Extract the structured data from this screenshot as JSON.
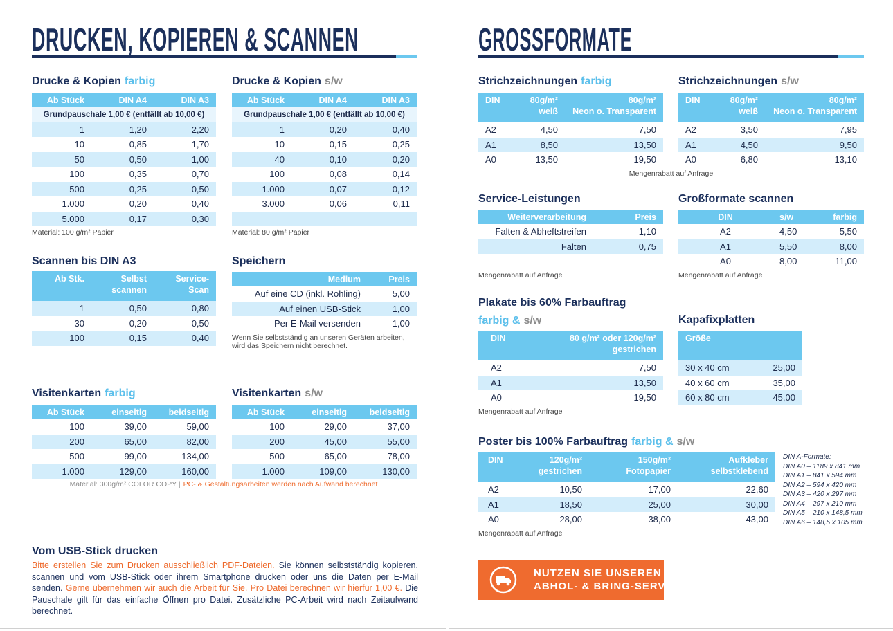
{
  "left_heading": "DRUCKEN, KOPIEREN & SCANNEN",
  "right_heading": "GROSSFORMATE",
  "tables": [
    {
      "title": [
        {
          "text": "Drucke & Kopien",
          "tone": "dark"
        },
        {
          "text": "farbig",
          "tone": "blue"
        }
      ],
      "columns": [
        "Ab Stück",
        "DIN A4",
        "DIN A3"
      ],
      "subheader": "Grundpauschale 1,00 € (entfällt ab 10,00 €)",
      "rows": [
        [
          "1",
          "1,20",
          "2,20"
        ],
        [
          "10",
          "0,85",
          "1,70"
        ],
        [
          "50",
          "0,50",
          "1,00"
        ],
        [
          "100",
          "0,35",
          "0,70"
        ],
        [
          "500",
          "0,25",
          "0,50"
        ],
        [
          "1.000",
          "0,20",
          "0,40"
        ],
        [
          "5.000",
          "0,17",
          "0,30"
        ]
      ],
      "note": "Material: 100 g/m² Papier"
    },
    {
      "title": [
        {
          "text": "Drucke & Kopien",
          "tone": "dark"
        },
        {
          "text": "s/w",
          "tone": "gray"
        }
      ],
      "columns": [
        "Ab Stück",
        "DIN A4",
        "DIN A3"
      ],
      "subheader": "Grundpauschale 1,00 € (entfällt ab 10,00 €)",
      "rows": [
        [
          "1",
          "0,20",
          "0,40"
        ],
        [
          "10",
          "0,15",
          "0,25"
        ],
        [
          "40",
          "0,10",
          "0,20"
        ],
        [
          "100",
          "0,08",
          "0,14"
        ],
        [
          "1.000",
          "0,07",
          "0,12"
        ],
        [
          "3.000",
          "0,06",
          "0,11"
        ]
      ],
      "note": "Material: 80 g/m² Papier"
    },
    {
      "title": [
        {
          "text": "Scannen bis DIN A3",
          "tone": "dark"
        }
      ],
      "columns": [
        "Ab Stk.",
        "Selbst\nscannen",
        "Service-\nScan"
      ],
      "rows": [
        [
          "1",
          "0,50",
          "0,80"
        ],
        [
          "30",
          "0,20",
          "0,50"
        ],
        [
          "100",
          "0,15",
          "0,40"
        ]
      ]
    },
    {
      "title": [
        {
          "text": "Speichern",
          "tone": "dark"
        }
      ],
      "columns": [
        "Medium",
        "Preis"
      ],
      "rows": [
        [
          "Auf eine CD (inkl. Rohling)",
          "5,00"
        ],
        [
          "Auf einen USB-Stick",
          "1,00"
        ],
        [
          "Per E-Mail versenden",
          "1,00"
        ]
      ],
      "note": "Wenn Sie selbstständig an unseren Geräten arbeiten,\nwird das Speichern nicht berechnet."
    },
    {
      "title": [
        {
          "text": "Visitenkarten",
          "tone": "dark"
        },
        {
          "text": "farbig",
          "tone": "blue"
        }
      ],
      "columns": [
        "Ab Stück",
        "einseitig",
        "beidseitig"
      ],
      "rows": [
        [
          "100",
          "39,00",
          "59,00"
        ],
        [
          "200",
          "65,00",
          "82,00"
        ],
        [
          "500",
          "99,00",
          "134,00"
        ],
        [
          "1.000",
          "129,00",
          "160,00"
        ]
      ]
    },
    {
      "title": [
        {
          "text": "Visitenkarten",
          "tone": "dark"
        },
        {
          "text": "s/w",
          "tone": "gray"
        }
      ],
      "columns": [
        "Ab Stück",
        "einseitig",
        "beidseitig"
      ],
      "rows": [
        [
          "100",
          "29,00",
          "37,00"
        ],
        [
          "200",
          "45,00",
          "55,00"
        ],
        [
          "500",
          "65,00",
          "78,00"
        ],
        [
          "1.000",
          "109,00",
          "130,00"
        ]
      ]
    },
    {
      "title": [
        {
          "text": "Strichzeichnungen",
          "tone": "dark"
        },
        {
          "text": "farbig",
          "tone": "blue"
        }
      ],
      "columns": [
        "DIN",
        "80g/m²\nweiß",
        "80g/m²\nNeon o. Transparent"
      ],
      "rows": [
        [
          "A2",
          "4,50",
          "7,50"
        ],
        [
          "A1",
          "8,50",
          "13,50"
        ],
        [
          "A0",
          "13,50",
          "19,50"
        ]
      ],
      "note": "Mengenrabatt auf Anfrage"
    },
    {
      "title": [
        {
          "text": "Strichzeichnungen",
          "tone": "dark"
        },
        {
          "text": "s/w",
          "tone": "gray"
        }
      ],
      "columns": [
        "DIN",
        "80g/m²\nweiß",
        "80g/m²\nNeon o. Transparent"
      ],
      "rows": [
        [
          "A2",
          "3,50",
          "7,95"
        ],
        [
          "A1",
          "4,50",
          "9,50"
        ],
        [
          "A0",
          "6,80",
          "13,10"
        ]
      ]
    },
    {
      "title": [
        {
          "text": "Service-Leistungen",
          "tone": "dark"
        }
      ],
      "columns": [
        "Weiterverarbeitung",
        "Preis"
      ],
      "rows": [
        [
          "Falten & Abheftstreifen",
          "1,10"
        ],
        [
          "Falten",
          "0,75"
        ]
      ],
      "note": "Mengenrabatt auf Anfrage"
    },
    {
      "title": [
        {
          "text": "Großformate scannen",
          "tone": "dark"
        }
      ],
      "columns": [
        "DIN",
        "s/w",
        "farbig"
      ],
      "rows": [
        [
          "A2",
          "4,50",
          "5,50"
        ],
        [
          "A1",
          "5,50",
          "8,00"
        ],
        [
          "A0",
          "8,00",
          "11,00"
        ]
      ],
      "note": "Mengenrabatt auf Anfrage"
    },
    {
      "title": [
        {
          "text": "Plakate bis 60% Farbauftrag",
          "tone": "dark"
        },
        {
          "text": "farbig &",
          "tone": "blue"
        },
        {
          "text": "s/w",
          "tone": "gray"
        }
      ],
      "columns": [
        "DIN",
        "80 g/m² oder 120g/m²\ngestrichen"
      ],
      "rows": [
        [
          "A2",
          "7,50"
        ],
        [
          "A1",
          "13,50"
        ],
        [
          "A0",
          "19,50"
        ]
      ],
      "note": "Mengenrabatt auf Anfrage"
    },
    {
      "title": [
        {
          "text": "Kapafixplatten",
          "tone": "dark"
        }
      ],
      "columns": [
        "Größe"
      ],
      "rows": [
        [
          "30 x 40 cm",
          "25,00"
        ],
        [
          "40 x 60 cm",
          "35,00"
        ],
        [
          "60 x 80 cm",
          "45,00"
        ]
      ]
    },
    {
      "title": [
        {
          "text": "Poster bis 100% Farbauftrag",
          "tone": "dark"
        },
        {
          "text": "farbig &",
          "tone": "blue"
        },
        {
          "text": "s/w",
          "tone": "gray"
        }
      ],
      "columns": [
        "DIN",
        "120g/m²\ngestrichen",
        "150g/m²\nFotopapier",
        "Aufkleber\nselbstklebend"
      ],
      "rows": [
        [
          "A2",
          "10,50",
          "17,00",
          "22,60"
        ],
        [
          "A1",
          "18,50",
          "25,00",
          "30,00"
        ],
        [
          "A0",
          "28,00",
          "38,00",
          "43,00"
        ]
      ],
      "note": "Mengenrabatt auf Anfrage"
    }
  ],
  "footnote": [
    {
      "text": "Material: 300g/m² COLOR COPY |",
      "tone": "gray"
    },
    {
      "text": "PC- & Gestaltungsarbeiten werden nach Aufwand berechnet",
      "tone": "orange"
    }
  ],
  "usb": {
    "title": "Vom USB-Stick drucken",
    "text": [
      {
        "text": "Bitte erstellen Sie zum Drucken ausschließlich PDF-Dateien.",
        "tone": "orange"
      },
      {
        "text": "Sie können selbstständig kopieren, scannen und vom USB-Stick oder ihrem Smartphone drucken oder uns die Daten per E-Mail senden.",
        "tone": "dark"
      },
      {
        "text": "Gerne übernehmen wir auch die Arbeit für Sie. Pro Datei berechnen wir hierfür 1,00 €.",
        "tone": "orange"
      },
      {
        "text": "Die Pauschale gilt für das einfache Öffnen pro Datei. Zusätzliche PC-Arbeit wird nach Zeitaufwand berechnet.",
        "tone": "dark"
      }
    ]
  },
  "formats": {
    "title": "DIN A-Formate:",
    "items": [
      "DIN A0 – 1189 x 841 mm",
      "DIN A1 – 841 x 594 mm",
      "DIN A2 – 594 x 420 mm",
      "DIN A3 – 420 x 297 mm",
      "DIN A4 – 297 x 210 mm",
      "DIN A5 – 210 x 148,5 mm",
      "DIN A6 – 148,5 x 105 mm"
    ]
  },
  "service_button": [
    "NUTZEN SIE UNSEREN",
    "ABHOL- & BRING-SERVICE"
  ]
}
